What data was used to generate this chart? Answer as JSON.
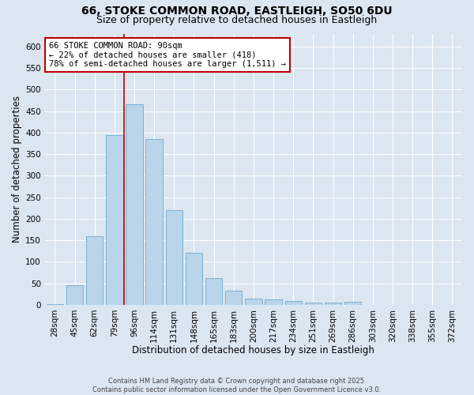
{
  "title_line1": "66, STOKE COMMON ROAD, EASTLEIGH, SO50 6DU",
  "title_line2": "Size of property relative to detached houses in Eastleigh",
  "xlabel": "Distribution of detached houses by size in Eastleigh",
  "ylabel": "Number of detached properties",
  "categories": [
    "28sqm",
    "45sqm",
    "62sqm",
    "79sqm",
    "96sqm",
    "114sqm",
    "131sqm",
    "148sqm",
    "165sqm",
    "183sqm",
    "200sqm",
    "217sqm",
    "234sqm",
    "251sqm",
    "269sqm",
    "286sqm",
    "303sqm",
    "320sqm",
    "338sqm",
    "355sqm",
    "372sqm"
  ],
  "values": [
    2,
    46,
    160,
    395,
    465,
    385,
    220,
    120,
    63,
    33,
    14,
    12,
    8,
    6,
    5,
    7,
    0,
    0,
    0,
    0,
    0
  ],
  "bar_color": "#bad4ea",
  "bar_edge_color": "#6aabcf",
  "vline_color": "#c00000",
  "annotation_text": "66 STOKE COMMON ROAD: 90sqm\n← 22% of detached houses are smaller (418)\n78% of semi-detached houses are larger (1,511) →",
  "annotation_box_color": "#ffffff",
  "annotation_box_edge_color": "#c00000",
  "ylim": [
    0,
    630
  ],
  "yticks": [
    0,
    50,
    100,
    150,
    200,
    250,
    300,
    350,
    400,
    450,
    500,
    550,
    600
  ],
  "background_color": "#dce6f1",
  "footer_text": "Contains HM Land Registry data © Crown copyright and database right 2025.\nContains public sector information licensed under the Open Government Licence v3.0.",
  "grid_color": "#ffffff",
  "title_fontsize": 10,
  "subtitle_fontsize": 9,
  "label_fontsize": 8.5,
  "tick_fontsize": 7.5,
  "annot_fontsize": 7.5,
  "footer_fontsize": 6
}
